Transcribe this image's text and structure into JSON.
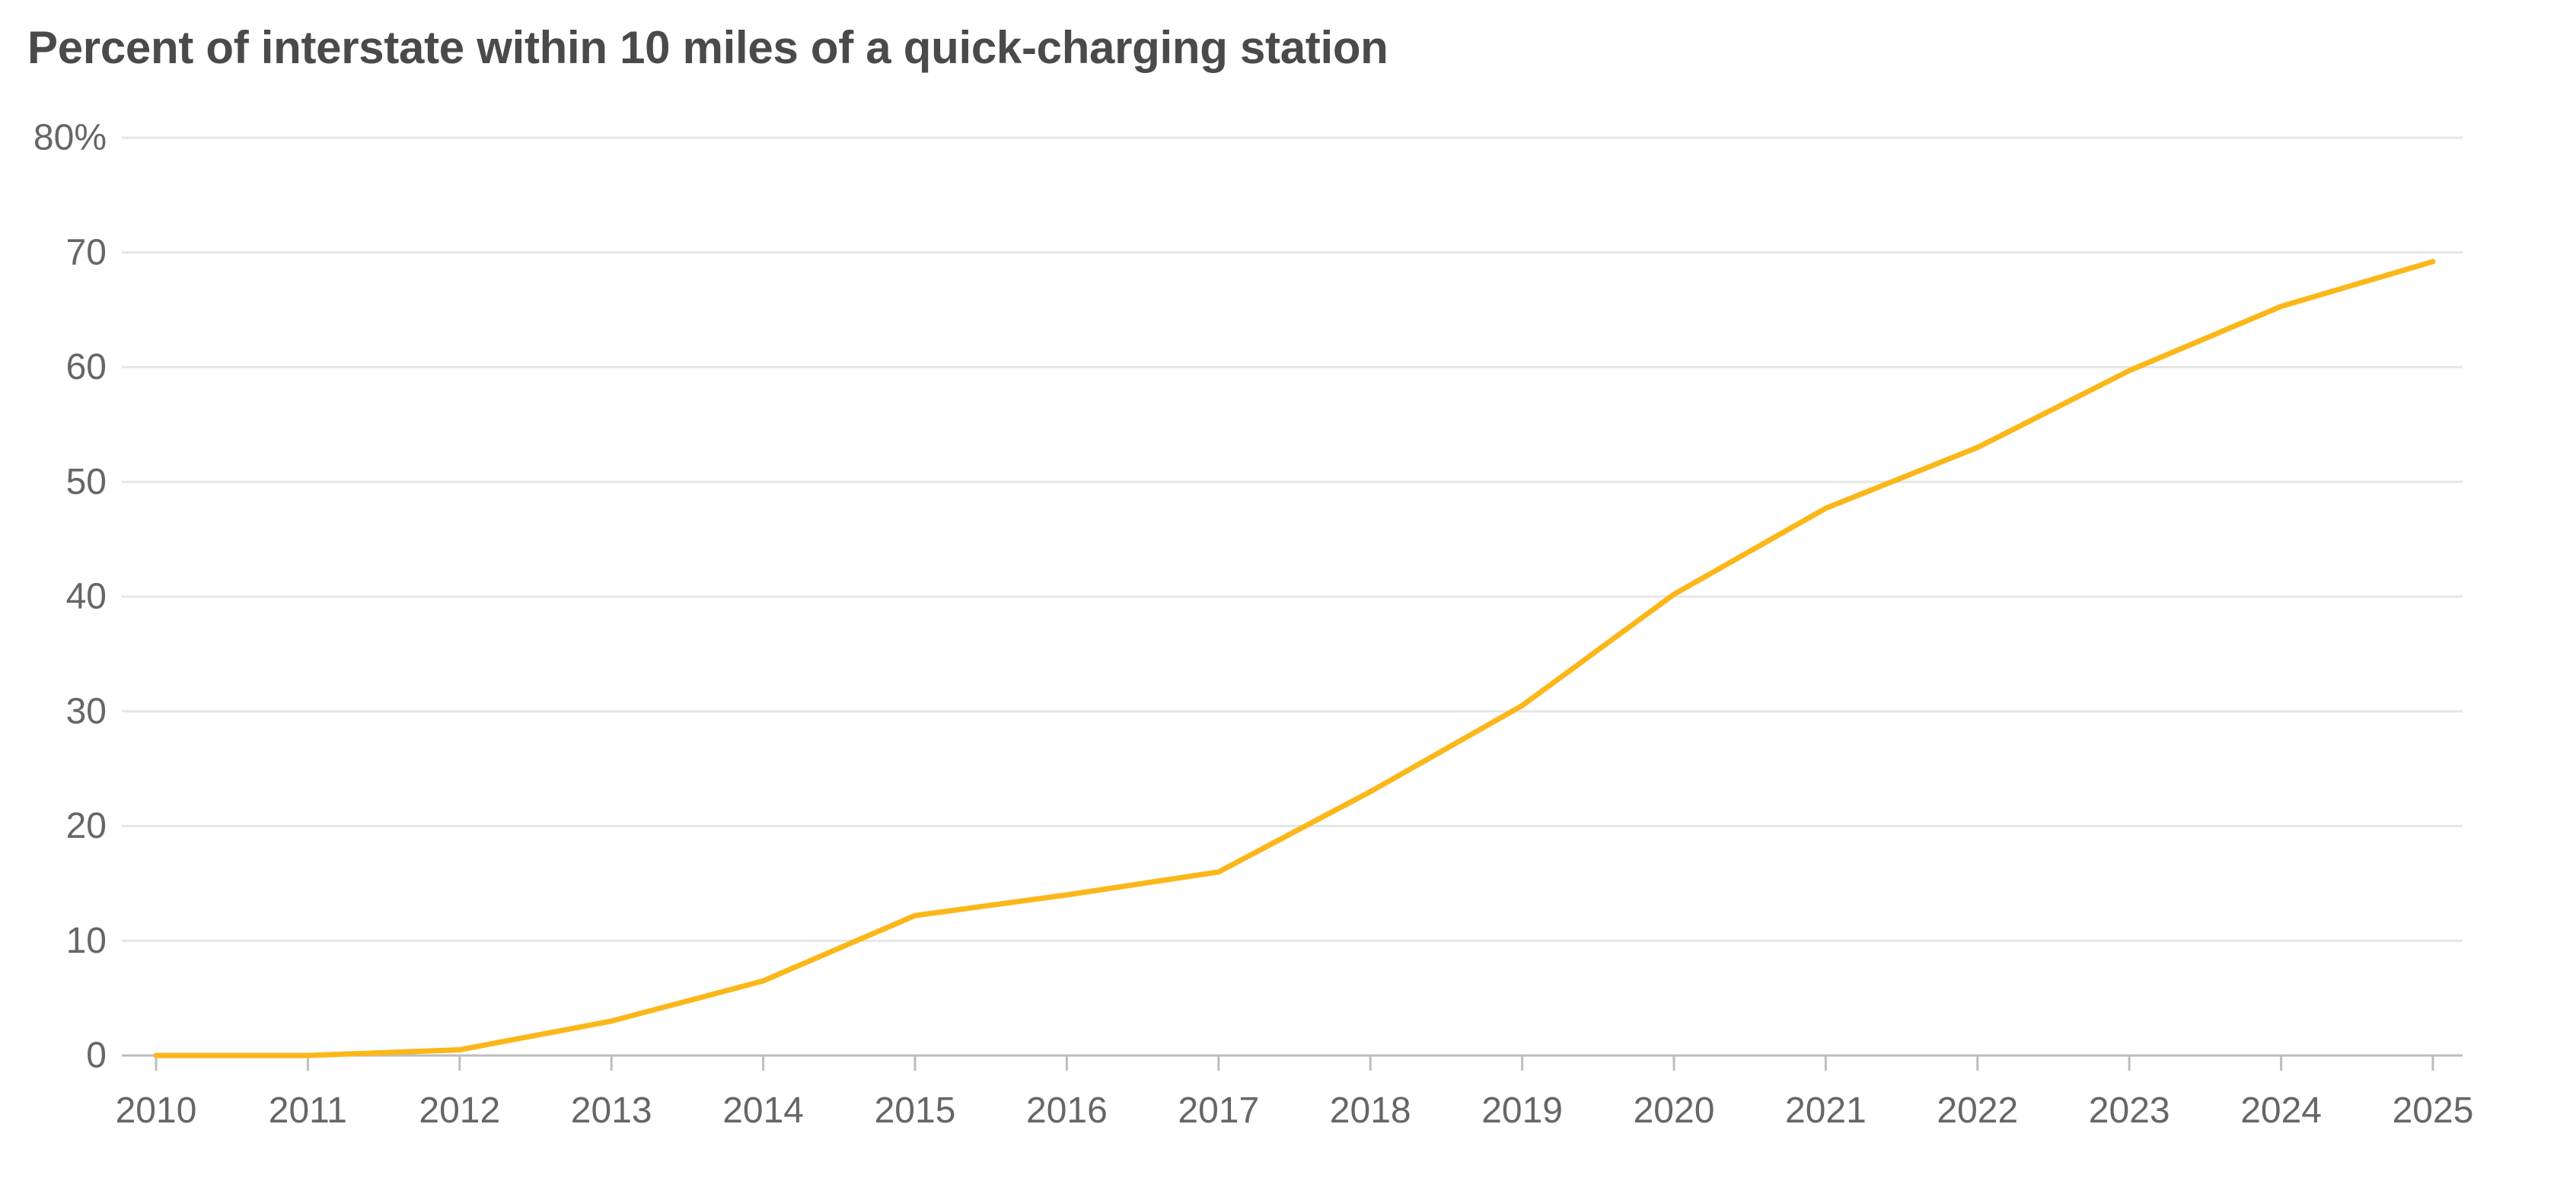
{
  "chart_data": {
    "type": "line",
    "title": "Percent of interstate within 10 miles of a quick-charging station",
    "xlabel": "",
    "ylabel": "",
    "x": [
      2010,
      2011,
      2012,
      2013,
      2014,
      2015,
      2016,
      2017,
      2018,
      2019,
      2020,
      2021,
      2022,
      2023,
      2024,
      2025
    ],
    "x_tick_labels": [
      "2010",
      "2011",
      "2012",
      "2013",
      "2014",
      "2015",
      "2016",
      "2017",
      "2018",
      "2019",
      "2020",
      "2021",
      "2022",
      "2023",
      "2024",
      "2025"
    ],
    "y_ticks": [
      0,
      10,
      20,
      30,
      40,
      50,
      60,
      70,
      80
    ],
    "y_tick_labels": [
      "0",
      "10",
      "20",
      "30",
      "40",
      "50",
      "60",
      "70",
      "80%"
    ],
    "ylim": [
      0,
      80
    ],
    "grid": true,
    "series": [
      {
        "color": "#fbb71a",
        "values": [
          0,
          0,
          0.5,
          3,
          6.5,
          12.2,
          14,
          16,
          23,
          30.5,
          40.2,
          47.7,
          53,
          59.7,
          65.3,
          69.2
        ]
      }
    ]
  }
}
